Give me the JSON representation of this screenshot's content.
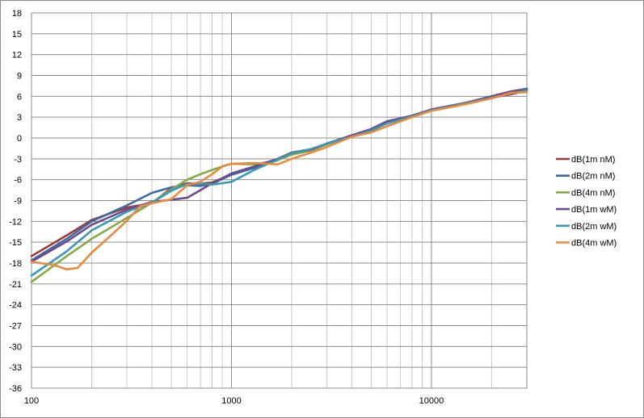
{
  "chart_data": {
    "type": "line",
    "title": "",
    "xlabel": "",
    "ylabel": "",
    "xscale": "log",
    "xlim": [
      100,
      30000
    ],
    "ylim": [
      -36,
      18
    ],
    "x_ticks": [
      100,
      1000,
      10000
    ],
    "x_tick_labels": [
      "100",
      "1000",
      "10000"
    ],
    "y_ticks": [
      -36,
      -33,
      -30,
      -27,
      -24,
      -21,
      -18,
      -15,
      -12,
      -9,
      -6,
      -3,
      0,
      3,
      6,
      9,
      12,
      15,
      18
    ],
    "y_tick_labels": [
      "-36",
      "-33",
      "-30",
      "-27",
      "-24",
      "-21",
      "-18",
      "-15",
      "-12",
      "-9",
      "-6",
      "-3",
      "0",
      "3",
      "6",
      "9",
      "12",
      "15",
      "18"
    ],
    "grid": true,
    "legend_position": "right",
    "series": [
      {
        "name": "dB(1m nM)",
        "color": "#9e3a37",
        "points": [
          [
            100,
            -17.0
          ],
          [
            150,
            -14.0
          ],
          [
            200,
            -11.8
          ],
          [
            300,
            -10.0
          ],
          [
            400,
            -9.4
          ],
          [
            500,
            -7.2
          ],
          [
            600,
            -6.5
          ],
          [
            700,
            -6.6
          ],
          [
            800,
            -6.4
          ],
          [
            900,
            -5.8
          ],
          [
            1000,
            -5.2
          ],
          [
            1300,
            -4.2
          ],
          [
            1700,
            -3.2
          ],
          [
            2000,
            -2.2
          ],
          [
            2500,
            -1.7
          ],
          [
            3000,
            -0.8
          ],
          [
            4000,
            0.3
          ],
          [
            5000,
            1.0
          ],
          [
            6000,
            2.2
          ],
          [
            8000,
            3.2
          ],
          [
            10000,
            4.0
          ],
          [
            15000,
            5.0
          ],
          [
            20000,
            5.8
          ],
          [
            25000,
            6.3
          ],
          [
            30000,
            6.8
          ]
        ]
      },
      {
        "name": "dB(2m nM)",
        "color": "#3f6aa1",
        "points": [
          [
            100,
            -17.6
          ],
          [
            150,
            -14.5
          ],
          [
            200,
            -12.0
          ],
          [
            300,
            -9.7
          ],
          [
            400,
            -7.9
          ],
          [
            500,
            -7.1
          ],
          [
            600,
            -6.8
          ],
          [
            700,
            -6.9
          ],
          [
            800,
            -6.6
          ],
          [
            900,
            -5.9
          ],
          [
            1000,
            -5.3
          ],
          [
            1300,
            -4.3
          ],
          [
            1700,
            -3.1
          ],
          [
            2000,
            -2.1
          ],
          [
            2500,
            -1.6
          ],
          [
            3000,
            -0.9
          ],
          [
            4000,
            0.4
          ],
          [
            5000,
            1.2
          ],
          [
            6000,
            2.3
          ],
          [
            8000,
            3.2
          ],
          [
            10000,
            4.1
          ],
          [
            15000,
            5.0
          ],
          [
            20000,
            5.9
          ],
          [
            25000,
            6.7
          ],
          [
            30000,
            7.1
          ]
        ]
      },
      {
        "name": "dB(4m nM)",
        "color": "#85a848",
        "points": [
          [
            100,
            -20.7
          ],
          [
            150,
            -17.0
          ],
          [
            200,
            -14.5
          ],
          [
            300,
            -11.5
          ],
          [
            400,
            -9.3
          ],
          [
            500,
            -7.4
          ],
          [
            600,
            -6.0
          ],
          [
            700,
            -5.2
          ],
          [
            800,
            -4.6
          ],
          [
            900,
            -4.1
          ],
          [
            1000,
            -3.7
          ],
          [
            1300,
            -3.8
          ],
          [
            1700,
            -3.2
          ],
          [
            2000,
            -2.4
          ],
          [
            2500,
            -1.8
          ],
          [
            3000,
            -0.9
          ],
          [
            4000,
            0.2
          ],
          [
            5000,
            1.1
          ],
          [
            6000,
            2.2
          ],
          [
            8000,
            3.1
          ],
          [
            10000,
            4.0
          ],
          [
            15000,
            5.1
          ],
          [
            20000,
            5.9
          ],
          [
            25000,
            6.5
          ],
          [
            30000,
            6.9
          ]
        ]
      },
      {
        "name": "dB(1m wM)",
        "color": "#6d4a8c",
        "points": [
          [
            100,
            -17.8
          ],
          [
            150,
            -14.9
          ],
          [
            200,
            -12.5
          ],
          [
            300,
            -10.3
          ],
          [
            400,
            -9.2
          ],
          [
            500,
            -8.9
          ],
          [
            600,
            -8.6
          ],
          [
            700,
            -7.5
          ],
          [
            800,
            -6.5
          ],
          [
            900,
            -5.8
          ],
          [
            1000,
            -5.1
          ],
          [
            1300,
            -4.1
          ],
          [
            1700,
            -3.0
          ],
          [
            2000,
            -2.1
          ],
          [
            2500,
            -1.7
          ],
          [
            3000,
            -0.8
          ],
          [
            4000,
            0.4
          ],
          [
            5000,
            1.3
          ],
          [
            6000,
            2.4
          ],
          [
            8000,
            3.2
          ],
          [
            10000,
            4.1
          ],
          [
            15000,
            5.1
          ],
          [
            20000,
            6.0
          ],
          [
            25000,
            6.7
          ],
          [
            30000,
            7.0
          ]
        ]
      },
      {
        "name": "dB(2m wM)",
        "color": "#3b98b4",
        "points": [
          [
            100,
            -19.8
          ],
          [
            150,
            -16.3
          ],
          [
            200,
            -13.3
          ],
          [
            300,
            -10.6
          ],
          [
            400,
            -9.3
          ],
          [
            500,
            -7.6
          ],
          [
            600,
            -6.6
          ],
          [
            700,
            -6.6
          ],
          [
            800,
            -6.7
          ],
          [
            900,
            -6.5
          ],
          [
            1000,
            -6.3
          ],
          [
            1300,
            -4.6
          ],
          [
            1700,
            -3.1
          ],
          [
            2000,
            -2.2
          ],
          [
            2500,
            -1.6
          ],
          [
            3000,
            -0.8
          ],
          [
            4000,
            0.2
          ],
          [
            5000,
            1.1
          ],
          [
            6000,
            2.1
          ],
          [
            8000,
            3.1
          ],
          [
            10000,
            4.0
          ],
          [
            15000,
            5.0
          ],
          [
            20000,
            5.8
          ],
          [
            25000,
            6.4
          ],
          [
            30000,
            6.9
          ]
        ]
      },
      {
        "name": "dB(4m wM)",
        "color": "#e8893c",
        "points": [
          [
            100,
            -17.8
          ],
          [
            130,
            -18.3
          ],
          [
            150,
            -18.9
          ],
          [
            170,
            -18.7
          ],
          [
            200,
            -16.5
          ],
          [
            250,
            -14.0
          ],
          [
            300,
            -11.9
          ],
          [
            350,
            -9.8
          ],
          [
            400,
            -9.4
          ],
          [
            500,
            -8.8
          ],
          [
            600,
            -6.8
          ],
          [
            700,
            -6.3
          ],
          [
            800,
            -5.2
          ],
          [
            900,
            -4.1
          ],
          [
            1000,
            -3.7
          ],
          [
            1300,
            -3.6
          ],
          [
            1700,
            -3.8
          ],
          [
            2000,
            -3.0
          ],
          [
            2500,
            -2.1
          ],
          [
            3000,
            -1.3
          ],
          [
            4000,
            0.2
          ],
          [
            5000,
            0.8
          ],
          [
            6000,
            1.7
          ],
          [
            8000,
            3.0
          ],
          [
            10000,
            3.9
          ],
          [
            15000,
            4.9
          ],
          [
            20000,
            5.7
          ],
          [
            25000,
            6.5
          ],
          [
            30000,
            6.6
          ]
        ]
      }
    ]
  }
}
